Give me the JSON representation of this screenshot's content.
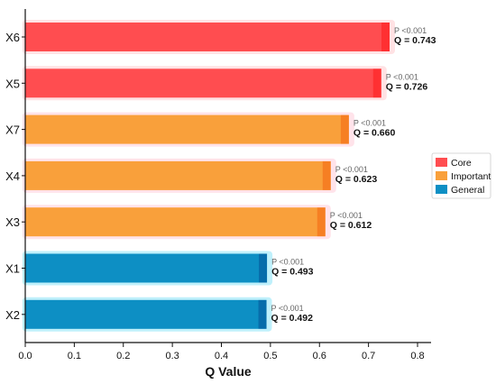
{
  "chart_data": {
    "type": "bar",
    "orientation": "horizontal",
    "xlabel": "Q Value",
    "ylabel": "",
    "xlim": [
      0,
      0.8
    ],
    "xticks": [
      "0.0",
      "0.1",
      "0.2",
      "0.3",
      "0.4",
      "0.5",
      "0.6",
      "0.7",
      "0.8"
    ],
    "categories": [
      "X6",
      "X5",
      "X7",
      "X4",
      "X3",
      "X1",
      "X2"
    ],
    "values": [
      0.743,
      0.726,
      0.66,
      0.623,
      0.612,
      0.493,
      0.492
    ],
    "groups": [
      "Core",
      "Core",
      "Important",
      "Important",
      "Important",
      "General",
      "General"
    ],
    "p_labels": [
      "P <0.001",
      "P <0.001",
      "P <0.001",
      "P <0.001",
      "P <0.001",
      "P <0.001",
      "P <0.001"
    ],
    "q_labels": [
      "Q = 0.743",
      "Q = 0.726",
      "Q = 0.660",
      "Q = 0.623",
      "Q = 0.612",
      "Q = 0.493",
      "Q = 0.492"
    ],
    "legend": {
      "placement": "right",
      "entries": [
        {
          "label": "Core",
          "color": "#ff4d50"
        },
        {
          "label": "Important",
          "color": "#f9a03b"
        },
        {
          "label": "General",
          "color": "#0d8fc4"
        }
      ]
    },
    "colors": {
      "Core": "#ff4d50",
      "Important": "#f9a03b",
      "General": "#0d8fc4",
      "Core_glow": "#ffe2e4",
      "Important_glow": "#ffe3ea",
      "General_glow": "#bff0fb"
    },
    "grid": false
  }
}
